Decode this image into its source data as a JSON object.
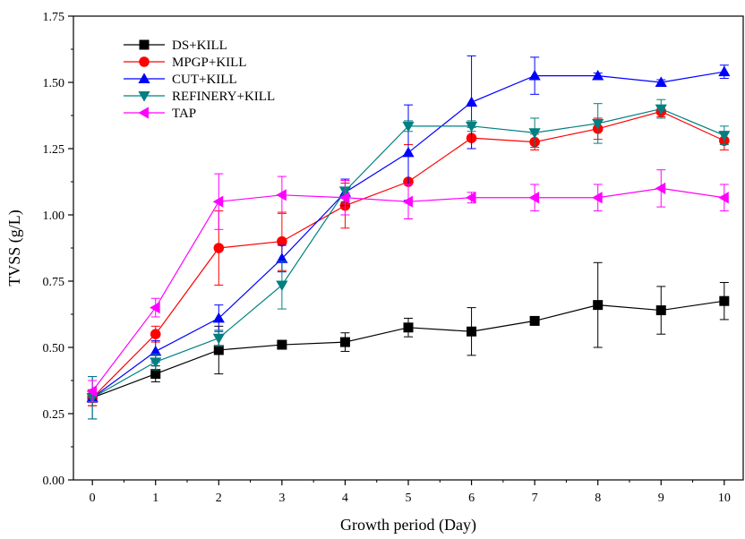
{
  "chart_data": {
    "type": "line",
    "xlabel": "Growth period (Day)",
    "ylabel": "TVSS (g/L)",
    "xlim": [
      -0.3,
      10.3
    ],
    "ylim": [
      0,
      1.75
    ],
    "x_ticks": [
      0,
      1,
      2,
      3,
      4,
      5,
      6,
      7,
      8,
      9,
      10
    ],
    "x_tick_labels": [
      "0",
      "1",
      "2",
      "3",
      "4",
      "5",
      "6",
      "7",
      "8",
      "9",
      "10"
    ],
    "y_ticks": [
      0,
      0.25,
      0.5,
      0.75,
      1.0,
      1.25,
      1.5,
      1.75
    ],
    "y_tick_labels": [
      "0.00",
      "0.25",
      "0.50",
      "0.75",
      "1.00",
      "1.25",
      "1.50",
      "1.75"
    ],
    "grid": false,
    "legend_position": "top-left",
    "series": [
      {
        "name": "DS+KILL",
        "color": "#000000",
        "marker": "square",
        "x": [
          0,
          1,
          2,
          3,
          4,
          5,
          6,
          7,
          8,
          9,
          10
        ],
        "y": [
          0.31,
          0.4,
          0.49,
          0.51,
          0.52,
          0.575,
          0.56,
          0.6,
          0.66,
          0.64,
          0.675
        ],
        "error": [
          0.03,
          0.03,
          0.09,
          0.01,
          0.035,
          0.035,
          0.09,
          0.01,
          0.16,
          0.09,
          0.07
        ]
      },
      {
        "name": "MPGP+KILL",
        "color": "#ff0000",
        "marker": "circle",
        "x": [
          0,
          1,
          2,
          3,
          4,
          5,
          6,
          7,
          8,
          9,
          10
        ],
        "y": [
          0.31,
          0.55,
          0.875,
          0.9,
          1.035,
          1.125,
          1.29,
          1.275,
          1.325,
          1.39,
          1.28
        ],
        "error": [
          0.03,
          0.03,
          0.14,
          0.11,
          0.085,
          0.14,
          0.04,
          0.03,
          0.04,
          0.02,
          0.035
        ]
      },
      {
        "name": "CUT+KILL",
        "color": "#0000ff",
        "marker": "triangle-up",
        "x": [
          0,
          1,
          2,
          3,
          4,
          5,
          6,
          7,
          8,
          9,
          10
        ],
        "y": [
          0.31,
          0.485,
          0.61,
          0.835,
          1.085,
          1.235,
          1.425,
          1.525,
          1.525,
          1.5,
          1.54
        ],
        "error": [
          0.08,
          0.04,
          0.05,
          0.05,
          0.05,
          0.18,
          0.175,
          0.07,
          0.01,
          0.01,
          0.025
        ]
      },
      {
        "name": "REFINERY+KILL",
        "color": "#008080",
        "marker": "triangle-down",
        "x": [
          0,
          1,
          2,
          3,
          4,
          5,
          6,
          7,
          8,
          9,
          10
        ],
        "y": [
          0.31,
          0.445,
          0.535,
          0.735,
          1.09,
          1.335,
          1.335,
          1.31,
          1.345,
          1.4,
          1.3
        ],
        "error": [
          0.08,
          0.03,
          0.03,
          0.09,
          0.04,
          0.02,
          0.02,
          0.055,
          0.075,
          0.035,
          0.035
        ]
      },
      {
        "name": "TAP",
        "color": "#ff00ff",
        "marker": "triangle-left",
        "x": [
          0,
          1,
          2,
          3,
          4,
          5,
          6,
          7,
          8,
          9,
          10
        ],
        "y": [
          0.335,
          0.65,
          1.05,
          1.075,
          1.065,
          1.05,
          1.065,
          1.065,
          1.065,
          1.1,
          1.065
        ],
        "error": [
          0.04,
          0.035,
          0.105,
          0.07,
          0.065,
          0.065,
          0.02,
          0.05,
          0.05,
          0.07,
          0.05
        ]
      }
    ]
  }
}
